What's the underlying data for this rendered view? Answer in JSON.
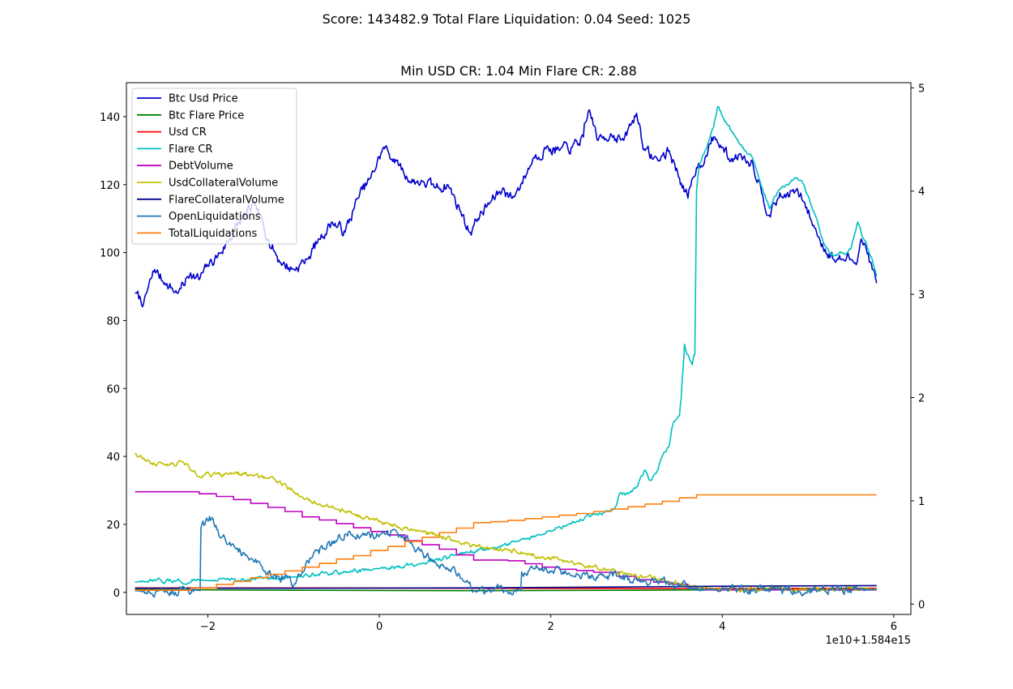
{
  "figure": {
    "suptitle": "Score: 143482.9 Total Flare Liquidation: 0.04 Seed: 1025"
  },
  "chart_data": {
    "type": "line",
    "title": "Min USD CR: 1.04 Min Flare CR: 2.88",
    "x_offset_label": "1e10+1.584e15",
    "x_ticks": [
      -2,
      0,
      2,
      4,
      6
    ],
    "x_tick_labels": [
      "−2",
      "0",
      "2",
      "4",
      "6"
    ],
    "xlim": [
      -2.95,
      6.2
    ],
    "ylim_left": [
      -6.5,
      150
    ],
    "y_ticks_left": [
      0,
      20,
      40,
      60,
      80,
      100,
      120,
      140
    ],
    "ylim_right": [
      -0.1,
      5.05
    ],
    "y_ticks_right": [
      0,
      1,
      2,
      3,
      4,
      5
    ],
    "grid": false,
    "legend_position": "top-left",
    "series": [
      {
        "name": "Btc Usd Price",
        "axis": "left",
        "color": "#0000cc",
        "noise": 1.4,
        "points": [
          [
            -2.85,
            88
          ],
          [
            -2.75,
            85
          ],
          [
            -2.62,
            95
          ],
          [
            -2.5,
            91
          ],
          [
            -2.35,
            88
          ],
          [
            -2.2,
            94
          ],
          [
            -2.1,
            92
          ],
          [
            -2.0,
            96
          ],
          [
            -1.85,
            100
          ],
          [
            -1.75,
            104
          ],
          [
            -1.6,
            110
          ],
          [
            -1.45,
            114
          ],
          [
            -1.3,
            104
          ],
          [
            -1.15,
            97
          ],
          [
            -1.0,
            95
          ],
          [
            -0.85,
            98
          ],
          [
            -0.7,
            104
          ],
          [
            -0.55,
            109
          ],
          [
            -0.4,
            106
          ],
          [
            -0.25,
            116
          ],
          [
            -0.1,
            122
          ],
          [
            0.05,
            131
          ],
          [
            0.2,
            127
          ],
          [
            0.35,
            121
          ],
          [
            0.5,
            121
          ],
          [
            0.65,
            119
          ],
          [
            0.8,
            120
          ],
          [
            0.95,
            112
          ],
          [
            1.05,
            106
          ],
          [
            1.15,
            110
          ],
          [
            1.3,
            115
          ],
          [
            1.45,
            119
          ],
          [
            1.55,
            116
          ],
          [
            1.65,
            120
          ],
          [
            1.8,
            128
          ],
          [
            1.95,
            131
          ],
          [
            2.1,
            130
          ],
          [
            2.25,
            131
          ],
          [
            2.38,
            134
          ],
          [
            2.45,
            142
          ],
          [
            2.55,
            133
          ],
          [
            2.7,
            135
          ],
          [
            2.85,
            133
          ],
          [
            3.0,
            141
          ],
          [
            3.1,
            130
          ],
          [
            3.25,
            127
          ],
          [
            3.38,
            130
          ],
          [
            3.5,
            122
          ],
          [
            3.6,
            116
          ],
          [
            3.7,
            125
          ],
          [
            3.8,
            128
          ],
          [
            3.9,
            134
          ],
          [
            4.0,
            131
          ],
          [
            4.1,
            127
          ],
          [
            4.2,
            129
          ],
          [
            4.35,
            127
          ],
          [
            4.45,
            119
          ],
          [
            4.55,
            111
          ],
          [
            4.65,
            116
          ],
          [
            4.75,
            117
          ],
          [
            4.85,
            118
          ],
          [
            4.95,
            115
          ],
          [
            5.1,
            106
          ],
          [
            5.2,
            101
          ],
          [
            5.3,
            98
          ],
          [
            5.4,
            98
          ],
          [
            5.5,
            98
          ],
          [
            5.55,
            97
          ],
          [
            5.62,
            104
          ],
          [
            5.68,
            101
          ],
          [
            5.75,
            95
          ],
          [
            5.8,
            91
          ]
        ]
      },
      {
        "name": "Btc Flare Price",
        "axis": "left",
        "color": "#008000",
        "noise": 0,
        "points": [
          [
            -2.85,
            0.8
          ],
          [
            -1.0,
            0.6
          ],
          [
            1.0,
            0.5
          ],
          [
            3.0,
            0.6
          ],
          [
            5.8,
            1.0
          ]
        ]
      },
      {
        "name": "Usd CR",
        "axis": "left",
        "color": "#ff0000",
        "noise": 0,
        "points": [
          [
            -2.85,
            1.3
          ],
          [
            -1.0,
            1.3
          ],
          [
            1.0,
            1.2
          ],
          [
            3.0,
            1.1
          ],
          [
            5.8,
            1.2
          ]
        ]
      },
      {
        "name": "Flare CR",
        "axis": "left",
        "color": "#00bfbf",
        "noise": 0.5,
        "points": [
          [
            -2.85,
            3
          ],
          [
            -2.0,
            3.5
          ],
          [
            -1.0,
            4.5
          ],
          [
            0.0,
            7
          ],
          [
            0.5,
            8.5
          ],
          [
            0.9,
            11
          ],
          [
            1.3,
            13
          ],
          [
            1.6,
            15
          ],
          [
            1.9,
            17
          ],
          [
            2.2,
            20
          ],
          [
            2.5,
            23
          ],
          [
            2.7,
            24
          ],
          [
            2.75,
            25
          ],
          [
            2.8,
            29
          ],
          [
            2.9,
            29
          ],
          [
            3.0,
            31
          ],
          [
            3.05,
            34
          ],
          [
            3.1,
            36
          ],
          [
            3.15,
            33
          ],
          [
            3.25,
            36
          ],
          [
            3.3,
            40
          ],
          [
            3.38,
            43
          ],
          [
            3.42,
            49
          ],
          [
            3.5,
            52
          ],
          [
            3.52,
            57
          ],
          [
            3.56,
            73
          ],
          [
            3.6,
            70
          ],
          [
            3.65,
            67
          ],
          [
            3.68,
            70
          ],
          [
            3.7,
            118
          ],
          [
            3.73,
            126
          ],
          [
            3.8,
            130
          ],
          [
            3.9,
            137
          ],
          [
            3.95,
            143
          ],
          [
            4.05,
            138
          ],
          [
            4.2,
            132
          ],
          [
            4.35,
            128
          ],
          [
            4.45,
            120
          ],
          [
            4.55,
            113
          ],
          [
            4.65,
            118
          ],
          [
            4.75,
            120
          ],
          [
            4.85,
            122
          ],
          [
            4.95,
            120
          ],
          [
            5.1,
            110
          ],
          [
            5.2,
            102
          ],
          [
            5.3,
            99
          ],
          [
            5.4,
            100
          ],
          [
            5.5,
            101
          ],
          [
            5.58,
            109
          ],
          [
            5.65,
            104
          ],
          [
            5.75,
            98
          ],
          [
            5.8,
            93
          ]
        ]
      },
      {
        "name": "DebtVolume",
        "axis": "left",
        "color": "#bf00bf",
        "noise": 0,
        "step": true,
        "points": [
          [
            -2.85,
            29.6
          ],
          [
            -2.15,
            29.6
          ],
          [
            -2.1,
            29
          ],
          [
            -1.9,
            28.2
          ],
          [
            -1.7,
            27.3
          ],
          [
            -1.5,
            26.2
          ],
          [
            -1.3,
            25
          ],
          [
            -1.1,
            23.8
          ],
          [
            -0.9,
            22.2
          ],
          [
            -0.7,
            21.3
          ],
          [
            -0.5,
            20.2
          ],
          [
            -0.3,
            19
          ],
          [
            -0.1,
            17.9
          ],
          [
            0.1,
            16.9
          ],
          [
            0.3,
            15.2
          ],
          [
            0.5,
            14
          ],
          [
            0.7,
            12.7
          ],
          [
            0.9,
            11
          ],
          [
            1.1,
            9.5
          ],
          [
            1.5,
            9.3
          ],
          [
            1.7,
            8.4
          ],
          [
            1.9,
            7.4
          ],
          [
            2.1,
            6.8
          ],
          [
            2.3,
            6.4
          ],
          [
            2.5,
            5.9
          ],
          [
            2.8,
            4.7
          ],
          [
            3.0,
            3.7
          ],
          [
            3.2,
            3
          ],
          [
            3.4,
            2.4
          ],
          [
            3.6,
            1.2
          ],
          [
            3.8,
            0.7
          ],
          [
            5.8,
            0.7
          ]
        ]
      },
      {
        "name": "UsdCollateralVolume",
        "axis": "left",
        "color": "#bfbf00",
        "noise": 0.6,
        "points": [
          [
            -2.85,
            41
          ],
          [
            -2.7,
            39
          ],
          [
            -2.5,
            37.5
          ],
          [
            -2.3,
            38.5
          ],
          [
            -2.1,
            34
          ],
          [
            -1.9,
            35
          ],
          [
            -1.7,
            35
          ],
          [
            -1.5,
            34.5
          ],
          [
            -1.3,
            33.5
          ],
          [
            -1.1,
            32
          ],
          [
            -0.9,
            28
          ],
          [
            -0.7,
            26
          ],
          [
            -0.5,
            24.5
          ],
          [
            -0.3,
            23
          ],
          [
            -0.1,
            21.5
          ],
          [
            0.1,
            20.5
          ],
          [
            0.3,
            19
          ],
          [
            0.5,
            18
          ],
          [
            0.7,
            17
          ],
          [
            0.9,
            15
          ],
          [
            1.1,
            14
          ],
          [
            1.3,
            13
          ],
          [
            1.5,
            12.5
          ],
          [
            1.7,
            11.5
          ],
          [
            1.9,
            10.5
          ],
          [
            2.1,
            9.5
          ],
          [
            2.3,
            8.5
          ],
          [
            2.5,
            7.5
          ],
          [
            2.7,
            6.5
          ],
          [
            2.9,
            5.5
          ],
          [
            3.1,
            4.5
          ],
          [
            3.3,
            3.5
          ],
          [
            3.5,
            2.5
          ],
          [
            3.7,
            1.5
          ],
          [
            3.9,
            1.1
          ],
          [
            5.8,
            1.0
          ]
        ]
      },
      {
        "name": "FlareCollateralVolume",
        "axis": "left",
        "color": "#00008b",
        "noise": 0,
        "points": [
          [
            -2.85,
            1.2
          ],
          [
            -1.0,
            1.2
          ],
          [
            1.0,
            1.3
          ],
          [
            3.0,
            1.6
          ],
          [
            4.0,
            1.8
          ],
          [
            5.8,
            2.0
          ]
        ]
      },
      {
        "name": "OpenLiquidations",
        "axis": "left",
        "color": "#1f77b4",
        "noise": 1.1,
        "points": [
          [
            -2.85,
            0.5
          ],
          [
            -2.09,
            0.5
          ],
          [
            -2.08,
            19
          ],
          [
            -2.0,
            21
          ],
          [
            -1.95,
            22
          ],
          [
            -1.85,
            16
          ],
          [
            -1.7,
            14
          ],
          [
            -1.55,
            11
          ],
          [
            -1.4,
            9
          ],
          [
            -1.3,
            6
          ],
          [
            -1.15,
            3
          ],
          [
            -1.08,
            5
          ],
          [
            -1.0,
            2
          ],
          [
            -0.9,
            6
          ],
          [
            -0.8,
            10
          ],
          [
            -0.65,
            13
          ],
          [
            -0.5,
            15
          ],
          [
            -0.35,
            18
          ],
          [
            -0.2,
            17
          ],
          [
            -0.05,
            16
          ],
          [
            0.05,
            18
          ],
          [
            0.2,
            18
          ],
          [
            0.35,
            15
          ],
          [
            0.5,
            12
          ],
          [
            0.65,
            9
          ],
          [
            0.8,
            7
          ],
          [
            0.9,
            5
          ],
          [
            1.0,
            3
          ],
          [
            1.08,
            1
          ],
          [
            1.1,
            0.5
          ],
          [
            1.65,
            0.5
          ],
          [
            1.66,
            6
          ],
          [
            1.8,
            7
          ],
          [
            2.0,
            6
          ],
          [
            2.2,
            5.5
          ],
          [
            2.4,
            5.2
          ],
          [
            2.6,
            5
          ],
          [
            2.8,
            4.5
          ],
          [
            3.0,
            4
          ],
          [
            3.2,
            3.5
          ],
          [
            3.4,
            2.5
          ],
          [
            3.5,
            2
          ],
          [
            3.65,
            1.2
          ],
          [
            3.8,
            0.8
          ],
          [
            5.8,
            0.8
          ]
        ]
      },
      {
        "name": "TotalLiquidations",
        "axis": "left",
        "color": "#ff7f0e",
        "noise": 0,
        "step": true,
        "points": [
          [
            -2.85,
            0.6
          ],
          [
            -2.4,
            0.6
          ],
          [
            -2.2,
            1.2
          ],
          [
            -1.9,
            2.3
          ],
          [
            -1.7,
            3.2
          ],
          [
            -1.5,
            4.3
          ],
          [
            -1.3,
            5.3
          ],
          [
            -1.1,
            6.3
          ],
          [
            -0.9,
            7.4
          ],
          [
            -0.7,
            8.5
          ],
          [
            -0.5,
            9.8
          ],
          [
            -0.3,
            10.8
          ],
          [
            -0.1,
            12.3
          ],
          [
            0.1,
            13.5
          ],
          [
            0.3,
            15
          ],
          [
            0.5,
            16.2
          ],
          [
            0.7,
            17.6
          ],
          [
            0.9,
            18.9
          ],
          [
            1.1,
            20.5
          ],
          [
            1.3,
            20.8
          ],
          [
            1.5,
            21.2
          ],
          [
            1.7,
            21.7
          ],
          [
            1.9,
            22.2
          ],
          [
            2.1,
            22.7
          ],
          [
            2.3,
            23.2
          ],
          [
            2.5,
            23.8
          ],
          [
            2.7,
            24.5
          ],
          [
            2.9,
            25.2
          ],
          [
            3.1,
            26
          ],
          [
            3.3,
            26.8
          ],
          [
            3.5,
            27.8
          ],
          [
            3.7,
            28.7
          ],
          [
            5.8,
            28.7
          ]
        ]
      }
    ]
  }
}
